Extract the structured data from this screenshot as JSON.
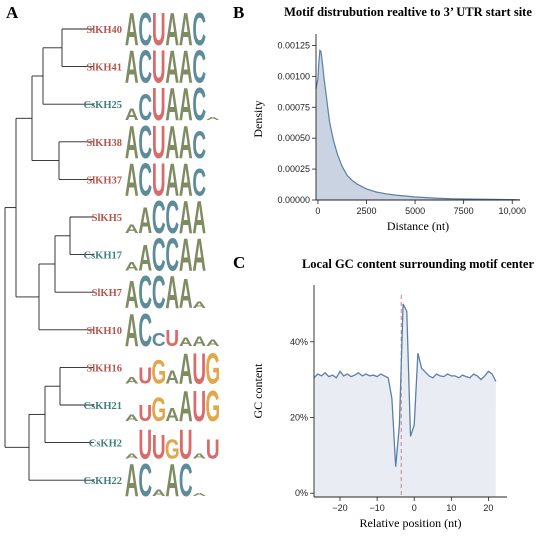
{
  "panels": {
    "a": "A",
    "b": "B",
    "c": "C"
  },
  "colors": {
    "sl": "#b5574f",
    "cs": "#3f7f7b",
    "line": "#5b7fa6",
    "fill": "#c9d3e2",
    "bgfill": "#e9edf3",
    "median": "#c9828a",
    "A": "#7f8b63",
    "C": "#5e8b9a",
    "G": "#e0a84b",
    "U": "#d96b6b"
  },
  "tree": {
    "leaves": [
      {
        "name": "SlKH40",
        "group": "sl",
        "logo": [
          {
            "b": "A",
            "h": 1
          },
          {
            "b": "C",
            "h": 1
          },
          {
            "b": "U",
            "h": 1
          },
          {
            "b": "A",
            "h": 1
          },
          {
            "b": "A",
            "h": 1
          },
          {
            "b": "C",
            "h": 1
          }
        ]
      },
      {
        "name": "SlKH41",
        "group": "sl",
        "logo": [
          {
            "b": "A",
            "h": 1
          },
          {
            "b": "C",
            "h": 1
          },
          {
            "b": "U",
            "h": 1
          },
          {
            "b": "A",
            "h": 1
          },
          {
            "b": "A",
            "h": 1
          },
          {
            "b": "C",
            "h": 1
          }
        ]
      },
      {
        "name": "CsKH25",
        "group": "cs",
        "logo": [
          {
            "b": "A",
            "h": 0.35
          },
          {
            "b": "C",
            "h": 0.8
          },
          {
            "b": "U",
            "h": 1
          },
          {
            "b": "A",
            "h": 1
          },
          {
            "b": "A",
            "h": 1
          },
          {
            "b": "C",
            "h": 1
          },
          {
            "b": "A",
            "h": 0.1
          }
        ]
      },
      {
        "name": "SlKH38",
        "group": "sl",
        "logo": [
          {
            "b": "A",
            "h": 1
          },
          {
            "b": "C",
            "h": 1
          },
          {
            "b": "U",
            "h": 1
          },
          {
            "b": "A",
            "h": 1
          },
          {
            "b": "A",
            "h": 1
          },
          {
            "b": "C",
            "h": 0.85
          }
        ]
      },
      {
        "name": "SlKH37",
        "group": "sl",
        "logo": [
          {
            "b": "A",
            "h": 1
          },
          {
            "b": "C",
            "h": 1
          },
          {
            "b": "U",
            "h": 1
          },
          {
            "b": "A",
            "h": 1
          },
          {
            "b": "A",
            "h": 1
          },
          {
            "b": "C",
            "h": 0.85
          }
        ]
      },
      {
        "name": "SlKH5",
        "group": "sl",
        "logo": [
          {
            "b": "A",
            "h": 0.25
          },
          {
            "b": "A",
            "h": 0.8
          },
          {
            "b": "C",
            "h": 1
          },
          {
            "b": "C",
            "h": 1
          },
          {
            "b": "A",
            "h": 1
          },
          {
            "b": "A",
            "h": 1
          }
        ]
      },
      {
        "name": "CsKH17",
        "group": "cs",
        "logo": [
          {
            "b": "A",
            "h": 0.25
          },
          {
            "b": "A",
            "h": 0.8
          },
          {
            "b": "C",
            "h": 1
          },
          {
            "b": "C",
            "h": 1
          },
          {
            "b": "A",
            "h": 1
          },
          {
            "b": "A",
            "h": 1
          }
        ]
      },
      {
        "name": "SlKH7",
        "group": "sl",
        "logo": [
          {
            "b": "A",
            "h": 0.85
          },
          {
            "b": "C",
            "h": 1
          },
          {
            "b": "C",
            "h": 1
          },
          {
            "b": "A",
            "h": 1
          },
          {
            "b": "A",
            "h": 0.9
          },
          {
            "b": "A",
            "h": 0.2
          }
        ]
      },
      {
        "name": "SlKH10",
        "group": "sl",
        "logo": [
          {
            "b": "A",
            "h": 1
          },
          {
            "b": "C",
            "h": 1
          },
          {
            "b": "C",
            "h": 0.4
          },
          {
            "b": "U",
            "h": 0.5
          },
          {
            "b": "A",
            "h": 0.25
          },
          {
            "b": "A",
            "h": 0.3
          },
          {
            "b": "A",
            "h": 0.2
          }
        ]
      },
      {
        "name": "SlKH16",
        "group": "sl",
        "logo": [
          {
            "b": "A",
            "h": 0.2
          },
          {
            "b": "U",
            "h": 0.5
          },
          {
            "b": "G",
            "h": 0.75
          },
          {
            "b": "A",
            "h": 0.4
          },
          {
            "b": "A",
            "h": 0.95
          },
          {
            "b": "U",
            "h": 0.95
          },
          {
            "b": "G",
            "h": 0.95
          }
        ]
      },
      {
        "name": "CsKH21",
        "group": "cs",
        "logo": [
          {
            "b": "A",
            "h": 0.2
          },
          {
            "b": "U",
            "h": 0.5
          },
          {
            "b": "G",
            "h": 0.75
          },
          {
            "b": "A",
            "h": 0.4
          },
          {
            "b": "A",
            "h": 0.95
          },
          {
            "b": "U",
            "h": 0.95
          },
          {
            "b": "G",
            "h": 0.95
          }
        ]
      },
      {
        "name": "CsKH2",
        "group": "cs",
        "logo": [
          {
            "b": "A",
            "h": 0.15
          },
          {
            "b": "U",
            "h": 0.9
          },
          {
            "b": "U",
            "h": 0.75
          },
          {
            "b": "G",
            "h": 0.6
          },
          {
            "b": "U",
            "h": 0.9
          },
          {
            "b": "A",
            "h": 0.15
          },
          {
            "b": "U",
            "h": 0.6
          }
        ]
      },
      {
        "name": "CsKH22",
        "group": "cs",
        "logo": [
          {
            "b": "A",
            "h": 1
          },
          {
            "b": "C",
            "h": 1
          },
          {
            "b": "A",
            "h": 0.2
          },
          {
            "b": "A",
            "h": 1
          },
          {
            "b": "C",
            "h": 1
          },
          {
            "b": "A",
            "h": 0.1
          }
        ]
      }
    ]
  },
  "chart_data": [
    {
      "type": "area",
      "title": "Motif distrubution realtive to 3’ UTR start site",
      "xlabel": "Distance (nt)",
      "ylabel": "Density",
      "xlim": [
        -100,
        10400
      ],
      "ylim": [
        0,
        0.00131
      ],
      "xticks": [
        0,
        2500,
        5000,
        7500,
        10000
      ],
      "xtick_labels": [
        "0",
        "2500",
        "5000",
        "7500",
        "10,000"
      ],
      "yticks": [
        0,
        0.00025,
        0.0005,
        0.00075,
        0.001,
        0.00125
      ],
      "ytick_labels": [
        "0.00000",
        "0.00025",
        "0.00050",
        "0.00075",
        "0.00100",
        "0.00125"
      ],
      "x": [
        -100,
        0,
        50,
        100,
        150,
        200,
        250,
        300,
        400,
        500,
        600,
        800,
        1000,
        1250,
        1500,
        1750,
        2000,
        2500,
        3000,
        3500,
        4000,
        4500,
        5000,
        5500,
        6000,
        6500,
        7000,
        8000,
        9000,
        10000,
        10400
      ],
      "y": [
        0.0009,
        0.00098,
        0.00112,
        0.00121,
        0.0012,
        0.00115,
        0.00108,
        0.001,
        0.00088,
        0.00075,
        0.00063,
        0.00048,
        0.00037,
        0.00027,
        0.0002,
        0.00016,
        0.00013,
        9e-05,
        6.5e-05,
        5e-05,
        4e-05,
        3.2e-05,
        2.4e-05,
        2e-05,
        1.5e-05,
        1.2e-05,
        1e-05,
        7e-06,
        5e-06,
        3e-06,
        2e-06
      ]
    },
    {
      "type": "line",
      "title": "Local GC content surrounding motif center",
      "xlabel": "Relative position (nt)",
      "ylabel": "GC content",
      "xlim": [
        -27,
        25
      ],
      "ylim": [
        -0.01,
        0.55
      ],
      "xticks": [
        -20,
        -10,
        0,
        10,
        20
      ],
      "xtick_labels": [
        "−20",
        "−10",
        "0",
        "10",
        "20"
      ],
      "yticks": [
        0,
        0.2,
        0.4
      ],
      "ytick_labels": [
        "0%",
        "20%",
        "40%"
      ],
      "median_x": -3.5,
      "x": [
        -27,
        -26,
        -25,
        -24,
        -23,
        -22,
        -21,
        -20,
        -19,
        -18,
        -17,
        -16,
        -15,
        -14,
        -13,
        -12,
        -11,
        -10,
        -9,
        -8,
        -7,
        -6,
        -5,
        -4,
        -3,
        -2,
        -1,
        0,
        1,
        2,
        3,
        4,
        5,
        6,
        7,
        8,
        9,
        10,
        11,
        12,
        13,
        14,
        15,
        16,
        17,
        18,
        19,
        20,
        21,
        22
      ],
      "y": [
        0.305,
        0.315,
        0.31,
        0.318,
        0.308,
        0.312,
        0.305,
        0.322,
        0.31,
        0.315,
        0.308,
        0.312,
        0.318,
        0.31,
        0.315,
        0.31,
        0.312,
        0.308,
        0.315,
        0.31,
        0.305,
        0.25,
        0.07,
        0.18,
        0.5,
        0.48,
        0.15,
        0.18,
        0.37,
        0.33,
        0.32,
        0.31,
        0.305,
        0.315,
        0.31,
        0.308,
        0.315,
        0.31,
        0.31,
        0.305,
        0.312,
        0.308,
        0.305,
        0.315,
        0.31,
        0.3,
        0.31,
        0.322,
        0.315,
        0.295
      ]
    }
  ]
}
